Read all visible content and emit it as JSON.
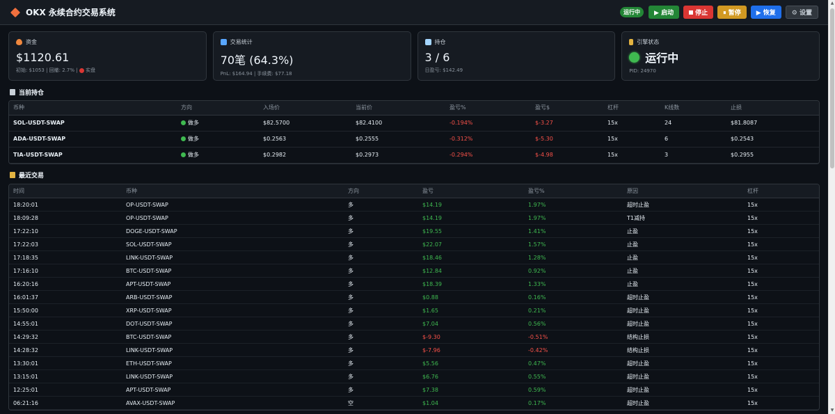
{
  "header": {
    "title": "OKX 永续合约交易系统",
    "status_badge": "运行中",
    "buttons": [
      "▶ 启动",
      "停止",
      "⏸ 暂停",
      "▶ 恢复",
      "⚙ 设置"
    ]
  },
  "cards": {
    "funds": {
      "label": "资金",
      "value": "$1120.61",
      "sub_prefix": "初始: $1053 | 回撤: 2.7% | ",
      "sub_suffix": "实盘"
    },
    "stats": {
      "label": "交易统计",
      "value": "70笔 (64.3%)",
      "sub": "PnL: $164.94 | 手续费: $77.18"
    },
    "positions": {
      "label": "持仓",
      "value": "3 / 6",
      "sub": "日盈亏: $142.49"
    },
    "engine": {
      "label": "引擎状态",
      "value": "运行中",
      "sub": "PID: 24970"
    }
  },
  "positions_section": {
    "title": "当前持仓",
    "columns": [
      "币种",
      "方向",
      "入场价",
      "当前价",
      "盈亏%",
      "盈亏$",
      "杠杆",
      "K线数",
      "止损"
    ],
    "rows": [
      {
        "symbol": "SOL-USDT-SWAP",
        "side": "做多",
        "entry": "$82.5700",
        "current": "$82.4100",
        "pnl_pct": "-0.194%",
        "pnl_usd": "$-3.27",
        "lev": "15x",
        "bars": "24",
        "stop": "$81.8087"
      },
      {
        "symbol": "ADA-USDT-SWAP",
        "side": "做多",
        "entry": "$0.2563",
        "current": "$0.2555",
        "pnl_pct": "-0.312%",
        "pnl_usd": "$-5.30",
        "lev": "15x",
        "bars": "6",
        "stop": "$0.2543"
      },
      {
        "symbol": "TIA-USDT-SWAP",
        "side": "做多",
        "entry": "$0.2982",
        "current": "$0.2973",
        "pnl_pct": "-0.294%",
        "pnl_usd": "$-4.98",
        "lev": "15x",
        "bars": "3",
        "stop": "$0.2955"
      }
    ]
  },
  "trades_section": {
    "title": "最近交易",
    "columns": [
      "时间",
      "币种",
      "方向",
      "盈亏",
      "盈亏%",
      "原因",
      "杠杆"
    ],
    "rows": [
      {
        "time": "18:20:01",
        "symbol": "OP-USDT-SWAP",
        "side": "多",
        "pnl": "$14.19",
        "pct": "1.97%",
        "reason": "超时止盈",
        "lev": "15x",
        "neg": false
      },
      {
        "time": "18:09:28",
        "symbol": "OP-USDT-SWAP",
        "side": "多",
        "pnl": "$14.19",
        "pct": "1.97%",
        "reason": "T1减持",
        "lev": "15x",
        "neg": false
      },
      {
        "time": "17:22:10",
        "symbol": "DOGE-USDT-SWAP",
        "side": "多",
        "pnl": "$19.55",
        "pct": "1.41%",
        "reason": "止盈",
        "lev": "15x",
        "neg": false
      },
      {
        "time": "17:22:03",
        "symbol": "SOL-USDT-SWAP",
        "side": "多",
        "pnl": "$22.07",
        "pct": "1.57%",
        "reason": "止盈",
        "lev": "15x",
        "neg": false
      },
      {
        "time": "17:18:35",
        "symbol": "LINK-USDT-SWAP",
        "side": "多",
        "pnl": "$18.46",
        "pct": "1.28%",
        "reason": "止盈",
        "lev": "15x",
        "neg": false
      },
      {
        "time": "17:16:10",
        "symbol": "BTC-USDT-SWAP",
        "side": "多",
        "pnl": "$12.84",
        "pct": "0.92%",
        "reason": "止盈",
        "lev": "15x",
        "neg": false
      },
      {
        "time": "16:20:16",
        "symbol": "APT-USDT-SWAP",
        "side": "多",
        "pnl": "$18.39",
        "pct": "1.33%",
        "reason": "止盈",
        "lev": "15x",
        "neg": false
      },
      {
        "time": "16:01:37",
        "symbol": "ARB-USDT-SWAP",
        "side": "多",
        "pnl": "$0.88",
        "pct": "0.16%",
        "reason": "超时止盈",
        "lev": "15x",
        "neg": false
      },
      {
        "time": "15:50:00",
        "symbol": "XRP-USDT-SWAP",
        "side": "多",
        "pnl": "$1.65",
        "pct": "0.21%",
        "reason": "超时止盈",
        "lev": "15x",
        "neg": false
      },
      {
        "time": "14:55:01",
        "symbol": "DOT-USDT-SWAP",
        "side": "多",
        "pnl": "$7.04",
        "pct": "0.56%",
        "reason": "超时止盈",
        "lev": "15x",
        "neg": false
      },
      {
        "time": "14:29:32",
        "symbol": "BTC-USDT-SWAP",
        "side": "多",
        "pnl": "$-9.30",
        "pct": "-0.51%",
        "reason": "结构止损",
        "lev": "15x",
        "neg": true
      },
      {
        "time": "14:28:32",
        "symbol": "LINK-USDT-SWAP",
        "side": "多",
        "pnl": "$-7.96",
        "pct": "-0.42%",
        "reason": "结构止损",
        "lev": "15x",
        "neg": true
      },
      {
        "time": "13:30:01",
        "symbol": "ETH-USDT-SWAP",
        "side": "多",
        "pnl": "$5.56",
        "pct": "0.47%",
        "reason": "超时止盈",
        "lev": "15x",
        "neg": false
      },
      {
        "time": "13:15:01",
        "symbol": "LINK-USDT-SWAP",
        "side": "多",
        "pnl": "$6.76",
        "pct": "0.55%",
        "reason": "超时止盈",
        "lev": "15x",
        "neg": false
      },
      {
        "time": "12:25:01",
        "symbol": "APT-USDT-SWAP",
        "side": "多",
        "pnl": "$7.38",
        "pct": "0.59%",
        "reason": "超时止盈",
        "lev": "15x",
        "neg": false
      },
      {
        "time": "06:21:16",
        "symbol": "AVAX-USDT-SWAP",
        "side": "空",
        "pnl": "$1.04",
        "pct": "0.17%",
        "reason": "超时止盈",
        "lev": "15x",
        "neg": false
      }
    ]
  }
}
